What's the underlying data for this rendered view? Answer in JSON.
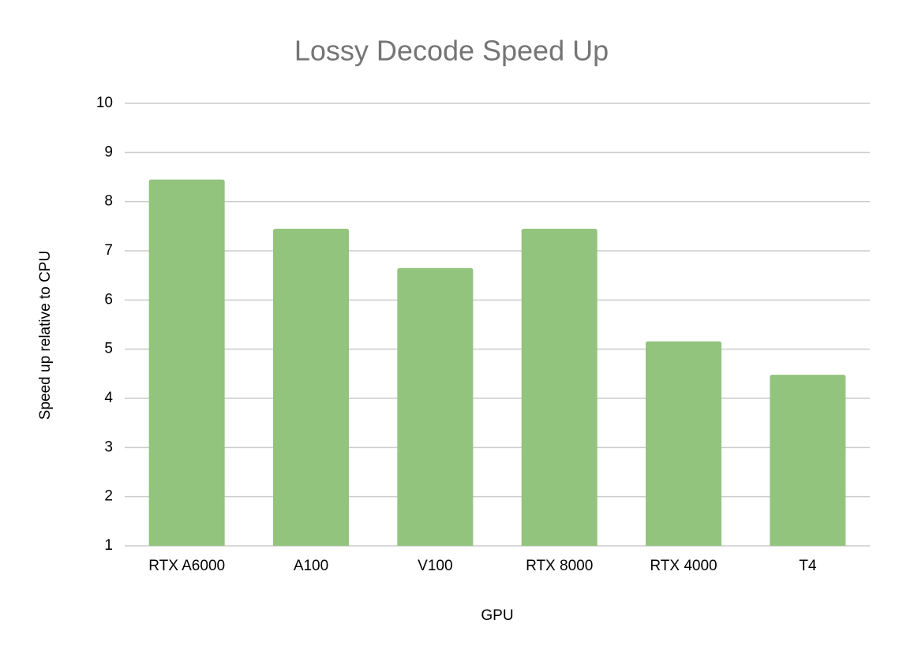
{
  "chart_data": {
    "type": "bar",
    "title": "Lossy Decode Speed Up",
    "x_label": "GPU",
    "y_label": "Speed up relative to CPU",
    "categories": [
      "RTX A6000",
      "A100",
      "V100",
      "RTX 8000",
      "RTX 4000",
      "T4"
    ],
    "values": [
      8.45,
      7.45,
      6.65,
      7.45,
      5.16,
      4.48
    ],
    "color": "#93c47d",
    "ylim": [
      1,
      10
    ],
    "yticks": [
      1,
      2,
      3,
      4,
      5,
      6,
      7,
      8,
      9,
      10
    ],
    "grid": true
  }
}
